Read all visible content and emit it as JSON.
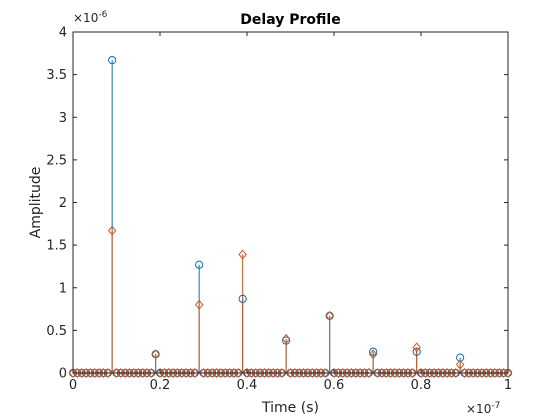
{
  "chart_data": {
    "type": "stem",
    "title": "Delay Profile",
    "xlabel": "Time (s)",
    "ylabel": "Amplitude",
    "x_exponent": "×10",
    "x_exponent_power": "-7",
    "y_exponent": "×10",
    "y_exponent_power": "-6",
    "xlim": [
      0,
      1
    ],
    "ylim": [
      0,
      4
    ],
    "x_ticks": [
      "0",
      "0.2",
      "0.4",
      "0.6",
      "0.8",
      "1"
    ],
    "x_tick_values": [
      0,
      0.2,
      0.4,
      0.6,
      0.8,
      1
    ],
    "y_ticks": [
      "0",
      "0.5",
      "1",
      "1.5",
      "2",
      "2.5",
      "3",
      "3.5",
      "4"
    ],
    "y_tick_values": [
      0,
      0.5,
      1,
      1.5,
      2,
      2.5,
      3,
      3.5,
      4
    ],
    "x_sampling": {
      "start": 0,
      "step": 0.01,
      "count": 101
    },
    "series": [
      {
        "color": "#0072BD",
        "marker": "circle",
        "nonzero": [
          {
            "x": 0.09,
            "y": 3.67
          },
          {
            "x": 0.19,
            "y": 0.22
          },
          {
            "x": 0.29,
            "y": 1.27
          },
          {
            "x": 0.39,
            "y": 0.87
          },
          {
            "x": 0.49,
            "y": 0.38
          },
          {
            "x": 0.59,
            "y": 0.67
          },
          {
            "x": 0.69,
            "y": 0.25
          },
          {
            "x": 0.79,
            "y": 0.25
          },
          {
            "x": 0.89,
            "y": 0.18
          }
        ]
      },
      {
        "color": "#D95319",
        "marker": "diamond",
        "nonzero": [
          {
            "x": 0.09,
            "y": 1.67
          },
          {
            "x": 0.19,
            "y": 0.22
          },
          {
            "x": 0.29,
            "y": 0.8
          },
          {
            "x": 0.39,
            "y": 1.39
          },
          {
            "x": 0.49,
            "y": 0.4
          },
          {
            "x": 0.59,
            "y": 0.67
          },
          {
            "x": 0.69,
            "y": 0.22
          },
          {
            "x": 0.79,
            "y": 0.3
          },
          {
            "x": 0.89,
            "y": 0.1
          }
        ]
      }
    ]
  }
}
